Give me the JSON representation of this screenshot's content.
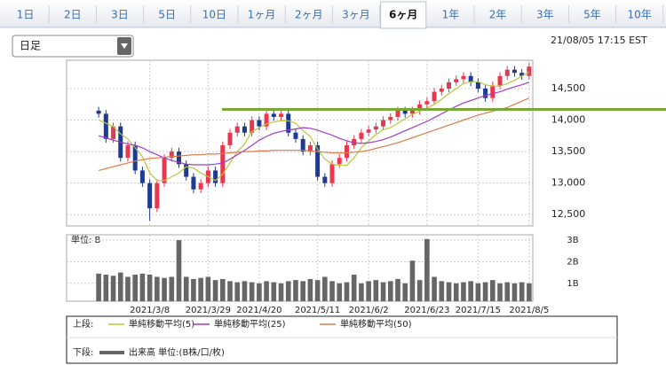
{
  "tabs": [
    "1日",
    "2日",
    "3日",
    "5日",
    "10日",
    "1ヶ月",
    "2ヶ月",
    "3ヶ月",
    "6ヶ月",
    "1年",
    "2年",
    "3年",
    "5年",
    "10年"
  ],
  "active_tab": "6ヶ月",
  "period_select": "日足",
  "timestamp": "21/08/05 17:15 EST",
  "chart_data": {
    "type": "candlestick",
    "up_color": "#e8384f",
    "down_color": "#1f3a93",
    "categories": [
      null,
      null,
      null,
      null,
      null,
      null,
      null,
      "2021/3/8",
      null,
      null,
      null,
      null,
      null,
      null,
      null,
      "2021/3/29",
      null,
      null,
      null,
      null,
      null,
      null,
      "2021/4/20",
      null,
      null,
      null,
      null,
      null,
      null,
      null,
      "2021/5/11",
      null,
      null,
      null,
      null,
      null,
      null,
      "2021/6/2",
      null,
      null,
      null,
      null,
      null,
      null,
      null,
      "2021/6/23",
      null,
      null,
      null,
      null,
      null,
      null,
      "2021/7/15",
      null,
      null,
      null,
      null,
      null,
      null,
      "2021/8/5"
    ],
    "open": [
      14150,
      14100,
      13700,
      13900,
      13400,
      13600,
      13200,
      13000,
      12600,
      13000,
      13400,
      13500,
      13300,
      13100,
      12900,
      13000,
      13200,
      13000,
      13600,
      13800,
      13900,
      13800,
      14000,
      13900,
      14100,
      14050,
      14100,
      13800,
      13700,
      13500,
      13600,
      13100,
      13000,
      13300,
      13400,
      13600,
      13700,
      13800,
      13850,
      13900,
      14000,
      14050,
      14150,
      14100,
      14150,
      14250,
      14300,
      14450,
      14500,
      14600,
      14650,
      14700,
      14600,
      14500,
      14350,
      14550,
      14700,
      14800,
      14750,
      14700
    ],
    "high": [
      14210,
      14160,
      13960,
      13960,
      13660,
      13660,
      13260,
      13060,
      13060,
      13460,
      13560,
      13560,
      13360,
      13160,
      13060,
      13260,
      13260,
      13660,
      13860,
      13960,
      13960,
      14060,
      14060,
      14160,
      14160,
      14160,
      14160,
      13860,
      13760,
      13660,
      13660,
      13160,
      13360,
      13460,
      13660,
      13760,
      13860,
      13910,
      13960,
      14060,
      14110,
      14210,
      14210,
      14210,
      14310,
      14360,
      14510,
      14560,
      14660,
      14710,
      14760,
      14760,
      14660,
      14560,
      14610,
      14760,
      14860,
      14860,
      14810,
      14910
    ],
    "low": [
      14040,
      13640,
      13640,
      13340,
      13340,
      13140,
      12940,
      12400,
      12540,
      12940,
      13340,
      13240,
      13040,
      12840,
      12840,
      12940,
      12940,
      12940,
      13540,
      13740,
      13740,
      13740,
      13840,
      13840,
      13990,
      13990,
      13740,
      13640,
      13440,
      13440,
      13040,
      12940,
      12940,
      13240,
      13340,
      13540,
      13640,
      13740,
      13790,
      13840,
      13940,
      13990,
      14040,
      14040,
      14090,
      14190,
      14240,
      14390,
      14440,
      14540,
      14590,
      14540,
      14440,
      14290,
      14290,
      14490,
      14640,
      14690,
      14640,
      14640
    ],
    "close": [
      14100,
      13700,
      13900,
      13400,
      13600,
      13200,
      13000,
      12600,
      13000,
      13400,
      13500,
      13300,
      13100,
      12900,
      13000,
      13200,
      13000,
      13600,
      13800,
      13900,
      13800,
      14000,
      13900,
      14100,
      14050,
      14100,
      13800,
      13700,
      13500,
      13600,
      13100,
      13000,
      13300,
      13400,
      13600,
      13700,
      13800,
      13850,
      13900,
      14000,
      14050,
      14150,
      14100,
      14150,
      14250,
      14300,
      14450,
      14500,
      14600,
      14650,
      14700,
      14600,
      14500,
      14350,
      14550,
      14700,
      14800,
      14750,
      14700,
      14850
    ],
    "series": [
      {
        "name": "単純移動平均(5)",
        "color": "#b5c93a",
        "values": [
          14000,
          13950,
          13900,
          13780,
          13700,
          13560,
          13420,
          13160,
          13040,
          13040,
          13100,
          13160,
          13260,
          13240,
          13160,
          13100,
          13040,
          13140,
          13320,
          13500,
          13620,
          13820,
          13880,
          13940,
          13970,
          13990,
          13990,
          13950,
          13830,
          13740,
          13540,
          13380,
          13300,
          13280,
          13280,
          13400,
          13560,
          13670,
          13770,
          13850,
          13880,
          13950,
          14020,
          14090,
          14140,
          14190,
          14250,
          14330,
          14420,
          14500,
          14580,
          14610,
          14610,
          14560,
          14540,
          14540,
          14580,
          14630,
          14700,
          14760
        ]
      },
      {
        "name": "単純移動平均(25)",
        "color": "#a03cc8",
        "values": [
          13750,
          13720,
          13680,
          13650,
          13620,
          13600,
          13560,
          13500,
          13450,
          13400,
          13360,
          13330,
          13300,
          13290,
          13290,
          13290,
          13300,
          13320,
          13380,
          13450,
          13520,
          13600,
          13680,
          13740,
          13790,
          13820,
          13840,
          13860,
          13880,
          13870,
          13840,
          13800,
          13760,
          13710,
          13670,
          13640,
          13630,
          13640,
          13660,
          13690,
          13730,
          13780,
          13830,
          13880,
          13930,
          13980,
          14040,
          14100,
          14160,
          14220,
          14270,
          14310,
          14350,
          14390,
          14420,
          14450,
          14490,
          14530,
          14560,
          14600
        ]
      },
      {
        "name": "単純移動平均(50)",
        "color": "#e07a4a",
        "values": [
          13200,
          13230,
          13260,
          13290,
          13320,
          13350,
          13370,
          13390,
          13400,
          13410,
          13420,
          13430,
          13440,
          13450,
          13450,
          13460,
          13460,
          13470,
          13480,
          13490,
          13500,
          13500,
          13510,
          13510,
          13520,
          13520,
          13520,
          13520,
          13520,
          13510,
          13500,
          13490,
          13480,
          13480,
          13480,
          13490,
          13500,
          13520,
          13550,
          13580,
          13610,
          13640,
          13680,
          13720,
          13760,
          13800,
          13840,
          13880,
          13920,
          13960,
          14000,
          14040,
          14080,
          14110,
          14140,
          14170,
          14200,
          14250,
          14300,
          14350
        ]
      }
    ],
    "ylim": [
      12320,
      14950
    ],
    "yticks": [
      {
        "value": 12500,
        "label": "12,500"
      },
      {
        "value": 13000,
        "label": "13,000"
      },
      {
        "value": 13500,
        "label": "13,500"
      },
      {
        "value": 14000,
        "label": "14,000"
      },
      {
        "value": 14500,
        "label": "14,500"
      }
    ],
    "grid": true,
    "hline": {
      "value": 14170,
      "color": "#7aa63a"
    },
    "volume": {
      "unit_label": "単位: B",
      "name": "出来高 単位:(B株/口/枚)",
      "color": "#666666",
      "values": [
        1.45,
        1.4,
        1.35,
        1.5,
        1.3,
        1.4,
        1.45,
        1.4,
        1.3,
        1.25,
        1.3,
        3.0,
        1.3,
        1.2,
        1.25,
        1.3,
        1.15,
        1.2,
        1.1,
        1.05,
        1.1,
        1.05,
        1.0,
        1.1,
        1.05,
        1.0,
        1.1,
        1.15,
        1.1,
        1.2,
        1.15,
        1.3,
        1.1,
        1.0,
        1.05,
        1.4,
        1.0,
        1.1,
        1.15,
        1.05,
        1.1,
        1.2,
        1.0,
        2.05,
        1.15,
        3.05,
        1.3,
        1.1,
        1.05,
        1.0,
        1.05,
        1.1,
        1.0,
        1.05,
        1.15,
        1.0,
        1.05,
        1.0,
        1.05,
        1.0
      ],
      "ylim": [
        0.17,
        3.25
      ],
      "yticks": [
        {
          "value": 1,
          "label": "1B"
        },
        {
          "value": 2,
          "label": "2B"
        },
        {
          "value": 3,
          "label": "3B"
        }
      ]
    },
    "legend": {
      "upper": "上段:",
      "lower": "下段:"
    }
  }
}
